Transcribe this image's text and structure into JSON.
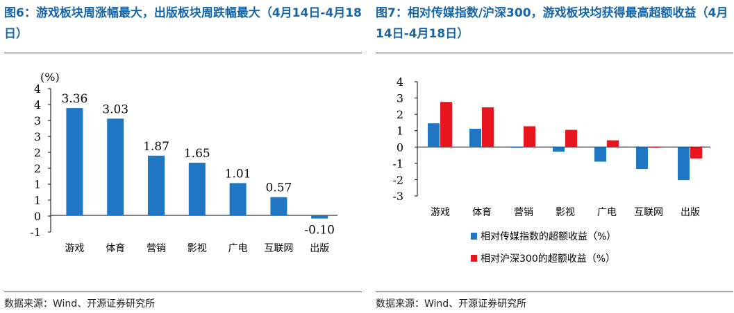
{
  "left": {
    "title": "图6：游戏板块周涨幅最大，出版板块周跌幅最大（4月14日-4月18日）",
    "source": "数据来源：Wind、开源证券研究所",
    "colors": {
      "bar": "#1f77c4",
      "text_accent": "#1565a8"
    },
    "chart_data": {
      "type": "bar",
      "categories": [
        "游戏",
        "体育",
        "营销",
        "影视",
        "广电",
        "互联网",
        "出版"
      ],
      "values": [
        3.36,
        3.03,
        1.87,
        1.65,
        1.01,
        0.57,
        -0.1
      ],
      "data_labels": [
        "3.36",
        "3.03",
        "1.87",
        "1.65",
        "1.01",
        "0.57",
        "-0.10"
      ],
      "unit_label": "(%)",
      "yticks": [
        "4",
        "4",
        "3",
        "3",
        "2",
        "2",
        "1",
        "1",
        "0",
        "-1"
      ],
      "ylim": [
        -0.5,
        4
      ],
      "grid": false
    }
  },
  "right": {
    "title": "图7：相对传媒指数/沪深300，游戏板块均获得最高超额收益（4月14日-4月18日）",
    "source": "数据来源：Wind、开源证券研究所",
    "colors": {
      "series1": "#1f77c4",
      "series2": "#e8141e"
    },
    "chart_data": {
      "type": "bar",
      "categories": [
        "游戏",
        "体育",
        "营销",
        "影视",
        "广电",
        "互联网",
        "出版"
      ],
      "series": [
        {
          "name": "相对传媒指数的超额收益（%）",
          "values": [
            1.45,
            1.12,
            -0.05,
            -0.28,
            -0.9,
            -1.35,
            -2.03
          ]
        },
        {
          "name": "相对沪深300的超额收益（%）",
          "values": [
            2.76,
            2.43,
            1.27,
            1.05,
            0.41,
            -0.03,
            -0.7
          ]
        }
      ],
      "yticks": [
        "4",
        "3",
        "2",
        "1",
        "0",
        "-1",
        "-2",
        "-3"
      ],
      "ylim": [
        -3,
        4
      ],
      "grid": false,
      "legend_position": "bottom"
    }
  }
}
